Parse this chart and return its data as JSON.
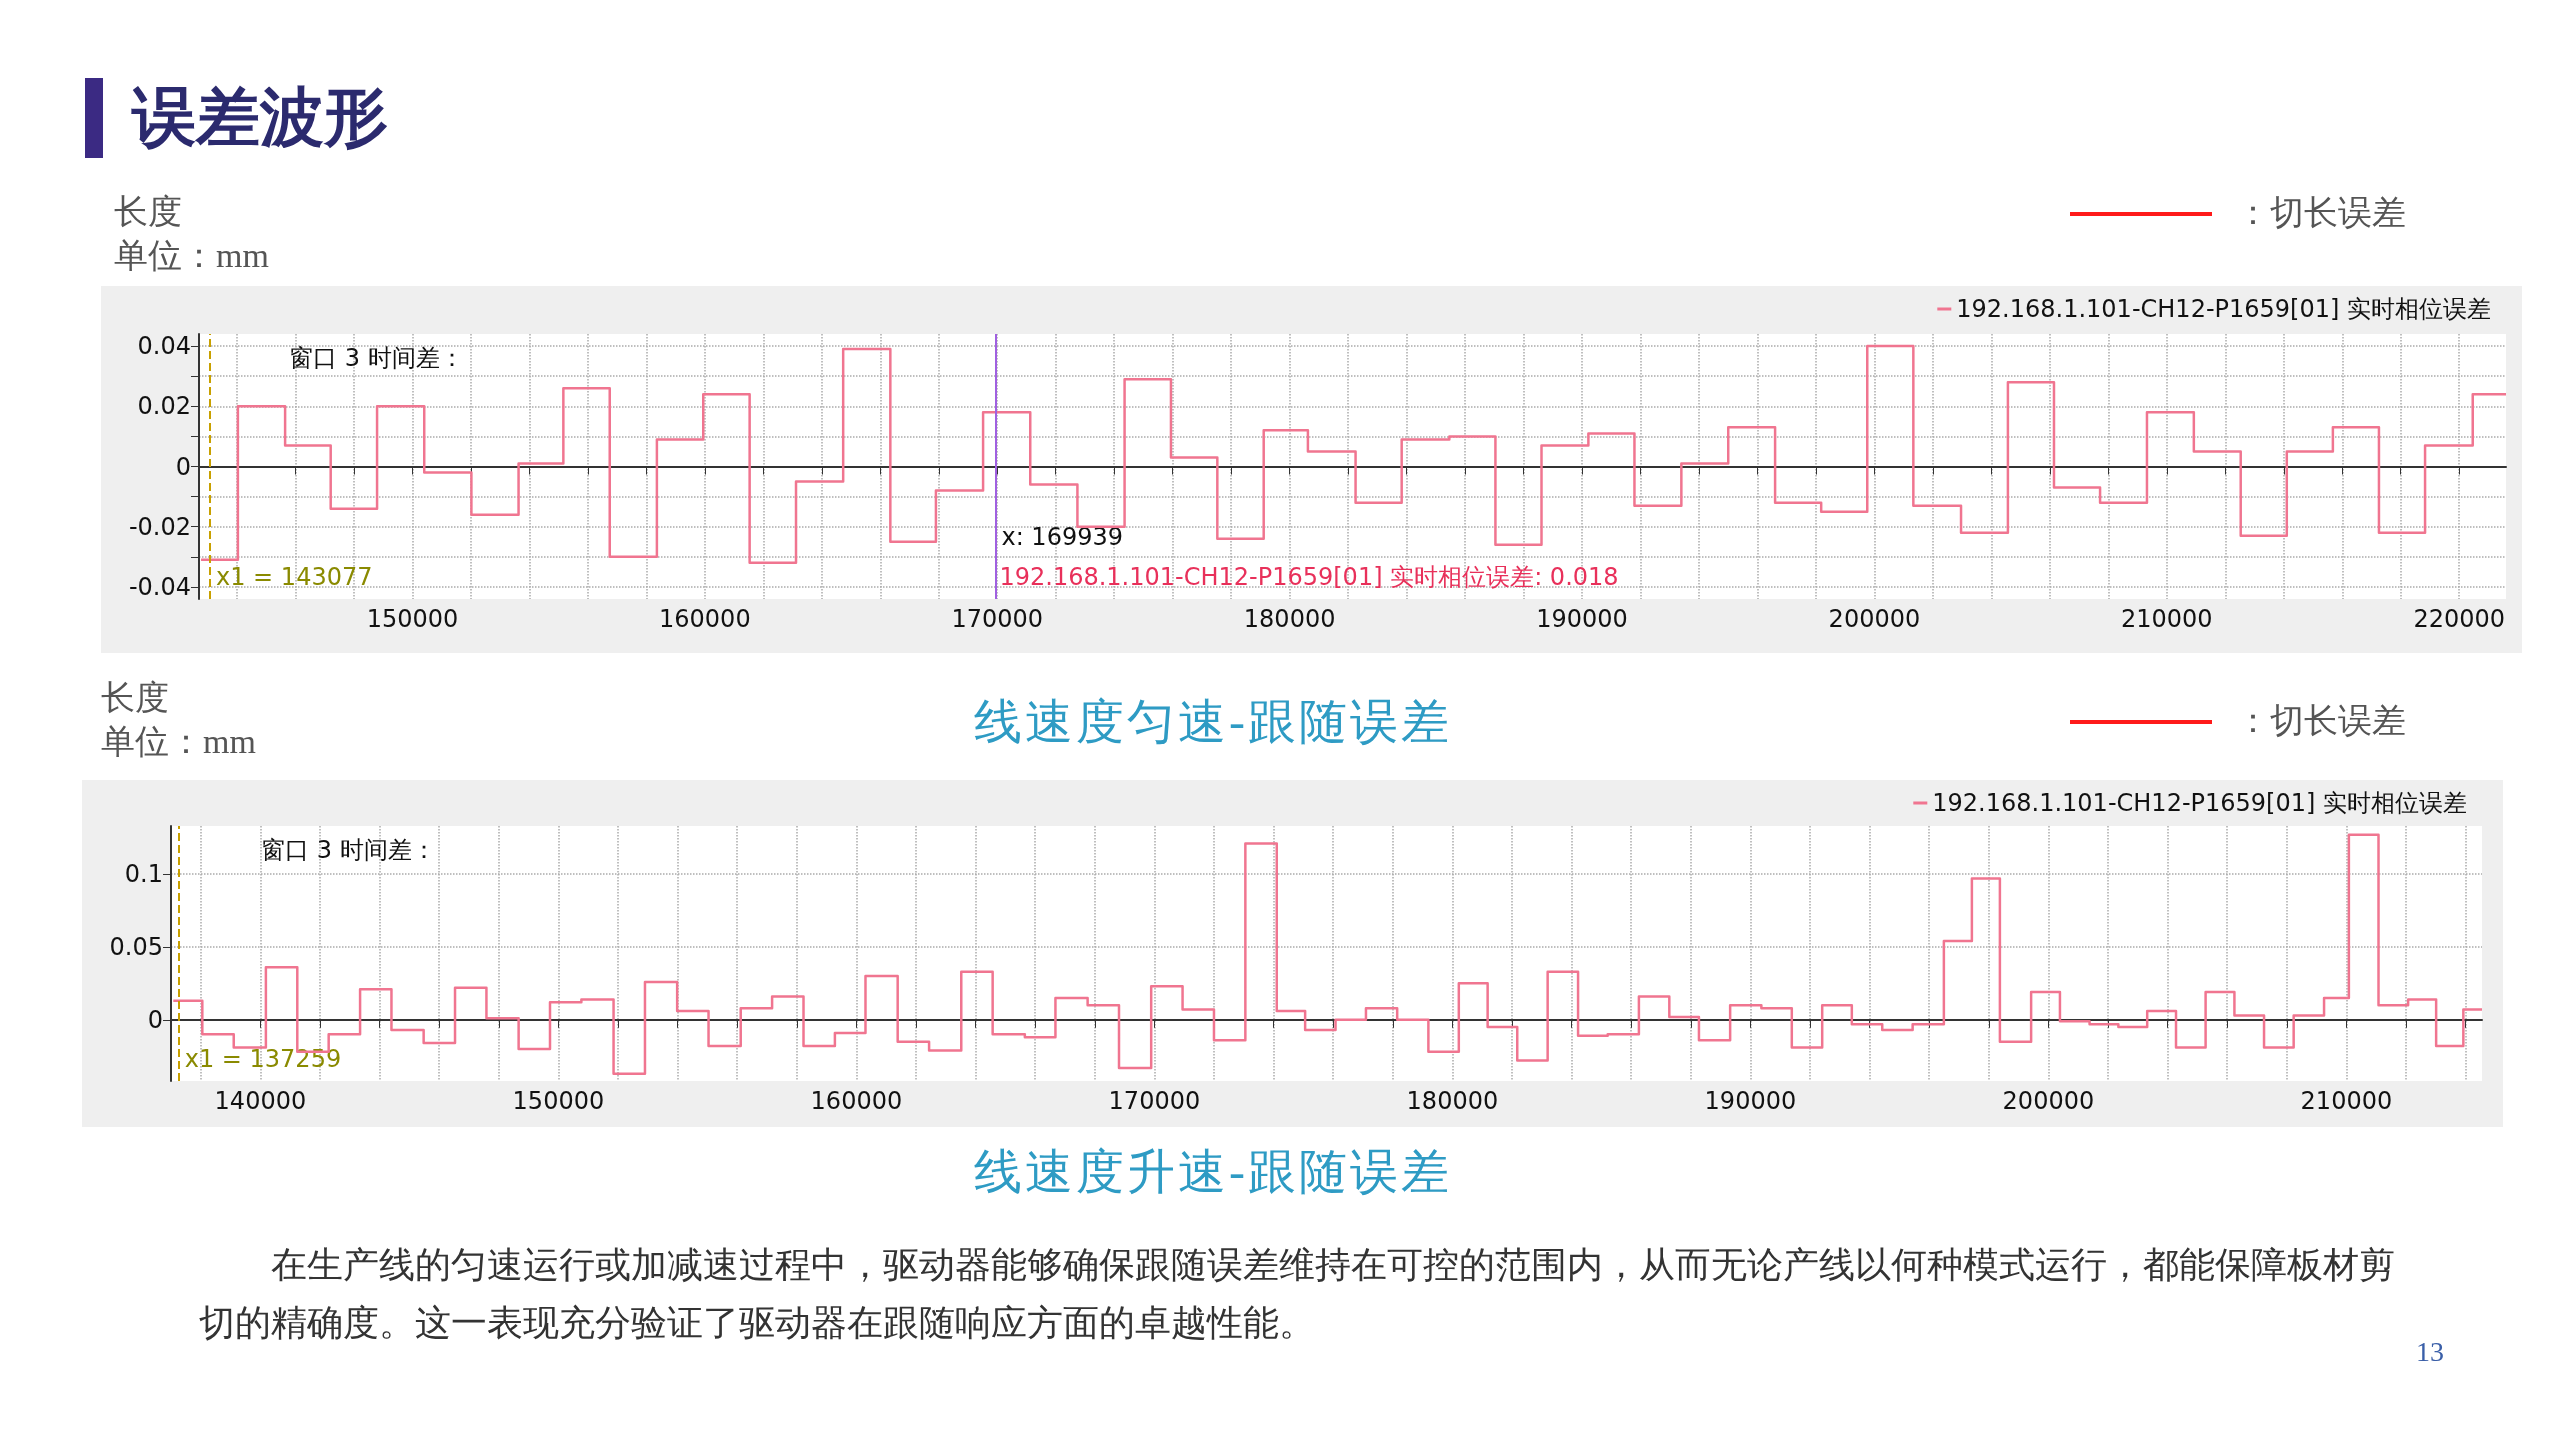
{
  "chart_data": [
    {
      "type": "step",
      "title": "误差波形",
      "subtitle": "线速度匀速-跟随误差",
      "ylabel": "长度",
      "legend": "top right",
      "grid": true,
      "xlim": [
        142700,
        221600
      ],
      "xticks": [
        {
          "value": 144000,
          "label": null
        },
        {
          "value": 146000,
          "label": null
        },
        {
          "value": 148000,
          "label": null
        },
        150000,
        {
          "value": 152000,
          "label": null
        },
        {
          "value": 154000,
          "label": null
        },
        {
          "value": 156000,
          "label": null
        },
        {
          "value": 158000,
          "label": null
        },
        160000,
        {
          "value": 162000,
          "label": null
        },
        {
          "value": 164000,
          "label": null
        },
        {
          "value": 166000,
          "label": null
        },
        {
          "value": 168000,
          "label": null
        },
        170000,
        {
          "value": 172000,
          "label": null
        },
        {
          "value": 174000,
          "label": null
        },
        {
          "value": 176000,
          "label": null
        },
        {
          "value": 178000,
          "label": null
        },
        180000,
        {
          "value": 182000,
          "label": null
        },
        {
          "value": 184000,
          "label": null
        },
        {
          "value": 186000,
          "label": null
        },
        {
          "value": 188000,
          "label": null
        },
        190000,
        {
          "value": 192000,
          "label": null
        },
        {
          "value": 194000,
          "label": null
        },
        {
          "value": 196000,
          "label": null
        },
        {
          "value": 198000,
          "label": null
        },
        200000,
        {
          "value": 202000,
          "label": null
        },
        {
          "value": 204000,
          "label": null
        },
        {
          "value": 206000,
          "label": null
        },
        {
          "value": 208000,
          "label": null
        },
        210000,
        {
          "value": 212000,
          "label": null
        },
        {
          "value": 214000,
          "label": null
        },
        {
          "value": 216000,
          "label": null
        },
        {
          "value": 218000,
          "label": null
        },
        220000
      ],
      "ylim": [
        -0.044,
        0.044
      ],
      "yticks": [
        -0.04,
        {
          "value": -0.03,
          "label": null
        },
        -0.02,
        {
          "value": -0.01,
          "label": null
        },
        0,
        {
          "value": 0.01,
          "label": null
        },
        0.02,
        {
          "value": 0.03,
          "label": null
        },
        0.04
      ],
      "series": [
        {
          "name": "192.168.1.101-CH12-P1659[01] 实时相位误差",
          "color": "#f07590",
          "x": [
            142770,
            144030,
            145645,
            147204,
            148790,
            150403,
            152016,
            153629,
            155161,
            156747,
            158360,
            159946,
            161532,
            163118,
            164731,
            166344,
            167903,
            169516,
            171129,
            172742,
            174355,
            175941,
            177527,
            179113,
            180625,
            182255,
            183832,
            185462,
            187038,
            188614,
            190217,
            191793,
            193397,
            195000,
            196603,
            198179,
            199755,
            201331,
            202962,
            204565,
            206141,
            207717,
            209321,
            210924,
            212527,
            214103,
            215679,
            217255,
            218832,
            220462,
            221600
          ],
          "values": [
            -0.031,
            0.02,
            0.007,
            -0.014,
            0.02,
            -0.002,
            -0.016,
            0.001,
            0.026,
            -0.03,
            0.009,
            0.024,
            -0.032,
            -0.005,
            0.039,
            -0.025,
            -0.008,
            0.018,
            -0.006,
            -0.02,
            0.029,
            0.003,
            -0.024,
            0.012,
            0.005,
            -0.012,
            0.009,
            0.01,
            -0.026,
            0.007,
            0.011,
            -0.013,
            0.001,
            0.013,
            -0.012,
            -0.015,
            0.04,
            -0.013,
            -0.022,
            0.028,
            -0.007,
            -0.012,
            0.018,
            0.005,
            -0.023,
            0.005,
            0.013,
            -0.022,
            0.007,
            0.024,
            0.024
          ]
        }
      ],
      "ref_lines": [
        {
          "axis": "x",
          "value": 143077,
          "label": "x1 = 143077",
          "color": "#c8a000",
          "line_style": "dashed"
        },
        {
          "axis": "x",
          "value": 169939,
          "label": "x: 169939",
          "color": "#a060e0",
          "line_style": "solid"
        }
      ],
      "annotations": [
        "窗口 3 时间差：",
        "：切长误差",
        "192.168.1.101-CH12-P1659[01] 实时相位误差: 0.018",
        "单位：mm"
      ]
    },
    {
      "type": "step",
      "title": "线速度升速-跟随误差",
      "ylabel": "长度",
      "legend": "top right",
      "grid": true,
      "xlim": [
        137000,
        214550
      ],
      "xticks": [
        {
          "value": 138000,
          "label": null
        },
        140000,
        {
          "value": 142000,
          "label": null
        },
        {
          "value": 144000,
          "label": null
        },
        {
          "value": 146000,
          "label": null
        },
        {
          "value": 148000,
          "label": null
        },
        150000,
        {
          "value": 152000,
          "label": null
        },
        {
          "value": 154000,
          "label": null
        },
        {
          "value": 156000,
          "label": null
        },
        {
          "value": 158000,
          "label": null
        },
        160000,
        {
          "value": 162000,
          "label": null
        },
        {
          "value": 164000,
          "label": null
        },
        {
          "value": 166000,
          "label": null
        },
        {
          "value": 168000,
          "label": null
        },
        170000,
        {
          "value": 172000,
          "label": null
        },
        {
          "value": 174000,
          "label": null
        },
        {
          "value": 176000,
          "label": null
        },
        {
          "value": 178000,
          "label": null
        },
        180000,
        {
          "value": 182000,
          "label": null
        },
        {
          "value": 184000,
          "label": null
        },
        {
          "value": 186000,
          "label": null
        },
        {
          "value": 188000,
          "label": null
        },
        190000,
        {
          "value": 192000,
          "label": null
        },
        {
          "value": 194000,
          "label": null
        },
        {
          "value": 196000,
          "label": null
        },
        {
          "value": 198000,
          "label": null
        },
        200000,
        {
          "value": 202000,
          "label": null
        },
        {
          "value": 204000,
          "label": null
        },
        {
          "value": 206000,
          "label": null
        },
        {
          "value": 208000,
          "label": null
        },
        210000,
        {
          "value": 212000,
          "label": null
        },
        {
          "value": 214000,
          "label": null
        }
      ],
      "ylim": [
        -0.042,
        0.133
      ],
      "yticks": [
        0,
        0.05,
        0.1
      ],
      "series": [
        {
          "name": "192.168.1.101-CH12-P1659[01] 实时相位误差",
          "color": "#f07590",
          "x": [
            137077,
            138051,
            139105,
            140184,
            141238,
            142291,
            143345,
            144398,
            145478,
            146531,
            147585,
            148665,
            149718,
            150771,
            151851,
            152905,
            153985,
            155038,
            156118,
            157171,
            158225,
            159278,
            160305,
            161385,
            162439,
            163519,
            164572,
            165652,
            166679,
            167759,
            168812,
            169892,
            170945,
            171999,
            173052,
            174106,
            175058,
            176078,
            177099,
            178147,
            179194,
            180215,
            181182,
            182176,
            183196,
            184217,
            185211,
            186258,
            187279,
            188273,
            189320,
            190368,
            191389,
            192409,
            193403,
            194424,
            195444,
            196492,
            197432,
            198372,
            199420,
            200387,
            201381,
            202348,
            203315,
            204282,
            205275,
            206242,
            207236,
            208230,
            209250,
            210083,
            211077,
            212071,
            213011,
            213924,
            214550
          ],
          "values": [
            0.013,
            -0.01,
            -0.019,
            0.036,
            -0.022,
            -0.01,
            0.021,
            -0.007,
            -0.016,
            0.022,
            0.001,
            -0.02,
            0.012,
            0.014,
            -0.037,
            0.026,
            0.006,
            -0.018,
            0.008,
            0.016,
            -0.018,
            -0.009,
            0.03,
            -0.015,
            -0.021,
            0.033,
            -0.01,
            -0.012,
            0.015,
            0.01,
            -0.033,
            0.023,
            0.007,
            -0.014,
            0.121,
            0.006,
            -0.007,
            0.0,
            0.008,
            0.0,
            -0.022,
            0.025,
            -0.005,
            -0.028,
            0.033,
            -0.011,
            -0.01,
            0.016,
            0.002,
            -0.014,
            0.01,
            0.008,
            -0.019,
            0.01,
            -0.003,
            -0.007,
            -0.003,
            0.054,
            0.097,
            -0.015,
            0.019,
            -0.001,
            -0.003,
            -0.005,
            0.006,
            -0.019,
            0.019,
            0.003,
            -0.019,
            0.003,
            0.015,
            0.127,
            0.01,
            0.014,
            -0.018,
            0.007,
            0.007
          ]
        }
      ],
      "ref_lines": [
        {
          "axis": "x",
          "value": 137259,
          "label": "x1 = 137259",
          "color": "#c8a000",
          "line_style": "dashed"
        }
      ],
      "annotations": [
        "窗口 3 时间差：",
        "：切长误差",
        "在生产线的匀速运行或加减速过程中，驱动器能够确保跟随误差维持在可控的范围内，从而无论产线以何种模式运行，都能保障板材剪切的精确度。这一表现充分验证了驱动器在跟随响应方面的卓越性能。",
        "13",
        "单位：mm"
      ]
    }
  ]
}
